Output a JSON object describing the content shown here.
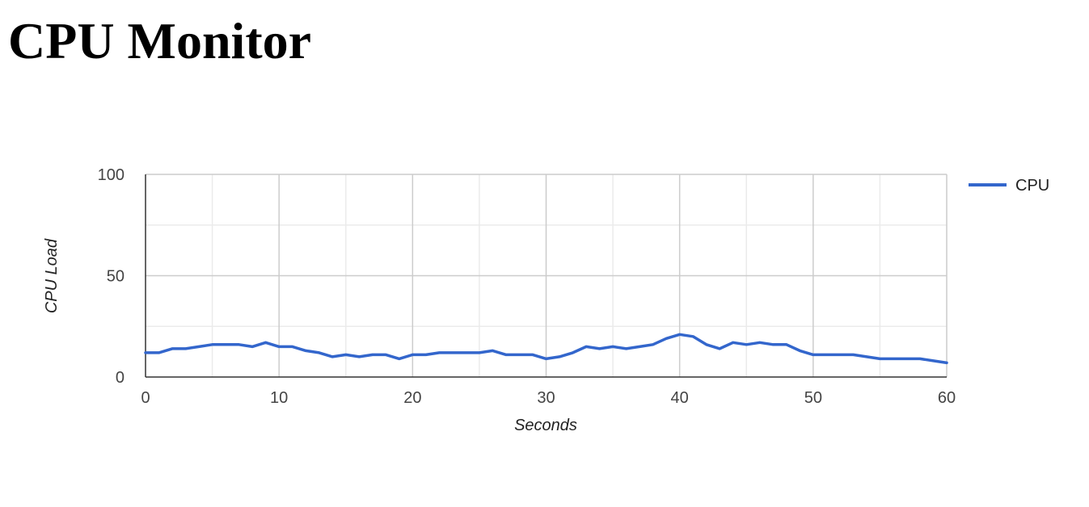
{
  "page": {
    "title": "CPU Monitor"
  },
  "colors": {
    "series": "#3366cc",
    "grid_major": "#cccccc",
    "grid_minor": "#ebebeb",
    "axis": "#333333"
  },
  "chart_data": {
    "type": "line",
    "title": "",
    "xlabel": "Seconds",
    "ylabel": "CPU Load",
    "xlim": [
      0,
      60
    ],
    "ylim": [
      0,
      100
    ],
    "x_ticks": [
      0,
      10,
      20,
      30,
      40,
      50,
      60
    ],
    "y_ticks": [
      0,
      50,
      100
    ],
    "grid": true,
    "legend_position": "right",
    "series": [
      {
        "name": "CPU",
        "color": "#3366cc",
        "x": [
          0,
          1,
          2,
          3,
          4,
          5,
          6,
          7,
          8,
          9,
          10,
          11,
          12,
          13,
          14,
          15,
          16,
          17,
          18,
          19,
          20,
          21,
          22,
          23,
          24,
          25,
          26,
          27,
          28,
          29,
          30,
          31,
          32,
          33,
          34,
          35,
          36,
          37,
          38,
          39,
          40,
          41,
          42,
          43,
          44,
          45,
          46,
          47,
          48,
          49,
          50,
          51,
          52,
          53,
          54,
          55,
          56,
          57,
          58,
          59,
          60
        ],
        "y": [
          12,
          12,
          14,
          14,
          15,
          16,
          16,
          16,
          15,
          17,
          15,
          15,
          13,
          12,
          10,
          11,
          10,
          11,
          11,
          9,
          11,
          11,
          12,
          12,
          12,
          12,
          13,
          11,
          11,
          11,
          9,
          10,
          12,
          15,
          14,
          15,
          14,
          15,
          16,
          19,
          21,
          20,
          16,
          14,
          17,
          16,
          17,
          16,
          16,
          13,
          11,
          11,
          11,
          11,
          10,
          9,
          9,
          9,
          9,
          8,
          7
        ]
      }
    ]
  }
}
